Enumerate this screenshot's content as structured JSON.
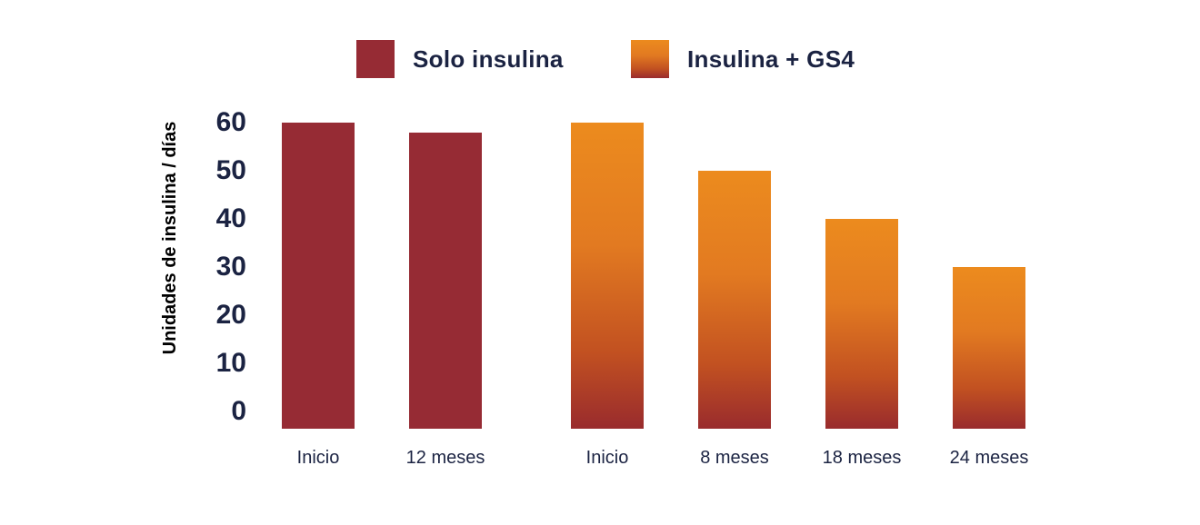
{
  "legend": {
    "items": [
      {
        "label": "Solo insulina",
        "swatch_icon": "solid-square-swatch",
        "fill": {
          "type": "solid",
          "color": "#962B34"
        }
      },
      {
        "label": "Insulina + GS4",
        "swatch_icon": "gradient-square-swatch",
        "fill": {
          "type": "gradient",
          "stops": [
            "#EC8B1E 0%",
            "#E27A21 40%",
            "#C25121 75%",
            "#992B2D 100%"
          ]
        }
      }
    ]
  },
  "chart_data": {
    "type": "bar",
    "title": "",
    "xlabel": "",
    "ylabel": "Unidades de insulina / días",
    "ylim": [
      0,
      60
    ],
    "yticks": [
      60,
      50,
      40,
      30,
      20,
      10,
      0
    ],
    "grid": false,
    "legend_position": "top",
    "text_color": "#1B2342",
    "series": [
      {
        "name": "Solo insulina",
        "fill": {
          "type": "solid",
          "color": "#962B34"
        },
        "categories": [
          "Inicio",
          "12 meses"
        ],
        "values": [
          60,
          58
        ]
      },
      {
        "name": "Insulina + GS4",
        "fill": {
          "type": "gradient",
          "stops": [
            "#EC8B1E 0%",
            "#E27A21 40%",
            "#C25121 75%",
            "#992B2D 100%"
          ]
        },
        "categories": [
          "Inicio",
          "8 meses",
          "18 meses",
          "24 meses"
        ],
        "values": [
          60,
          50,
          40,
          30
        ]
      }
    ]
  }
}
